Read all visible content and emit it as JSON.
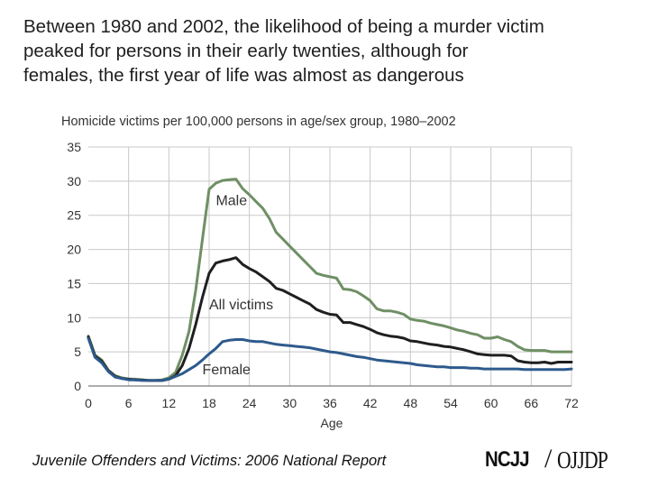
{
  "headline": "Between 1980 and 2002, the likelihood of being a murder victim\npeaked for persons in their early twenties, although for\nfemales, the first year of life was almost as dangerous",
  "footer": {
    "source": "Juvenile Offenders and Victims: 2006 National Report",
    "logo_left": "NCJJ",
    "logo_right": "OJJDP"
  },
  "colors": {
    "male": "#6f8f64",
    "all": "#1f1f1f",
    "female": "#2e5a8c",
    "grid": "#c8c8c8",
    "axis": "#7a7a7a"
  },
  "chart_data": {
    "type": "line",
    "title": "Homicide victims per 100,000 persons in age/sex group, 1980–2002",
    "xlabel": "Age",
    "ylabel": "",
    "xlim": [
      0,
      72
    ],
    "ylim": [
      0,
      35
    ],
    "xticks": [
      "0",
      "6",
      "12",
      "18",
      "24",
      "30",
      "36",
      "42",
      "48",
      "54",
      "60",
      "66",
      "72"
    ],
    "yticks": [
      "0",
      "5",
      "10",
      "15",
      "20",
      "25",
      "30",
      "35"
    ],
    "grid": true,
    "legend": "inline labels",
    "series": [
      {
        "name": "Male",
        "color_key": "male",
        "label_pos": [
          19,
          26.5
        ],
        "x": [
          0,
          1,
          2,
          3,
          4,
          5,
          6,
          7,
          8,
          9,
          10,
          11,
          12,
          13,
          14,
          15,
          16,
          17,
          18,
          19,
          20,
          21,
          22,
          23,
          24,
          25,
          26,
          27,
          28,
          29,
          30,
          31,
          32,
          33,
          34,
          35,
          36,
          37,
          38,
          39,
          40,
          41,
          42,
          43,
          44,
          45,
          46,
          47,
          48,
          49,
          50,
          51,
          52,
          53,
          54,
          55,
          56,
          57,
          58,
          59,
          60,
          61,
          62,
          63,
          64,
          65,
          66,
          67,
          68,
          69,
          70,
          71,
          72
        ],
        "y": [
          7.3,
          4.5,
          3.8,
          2.3,
          1.5,
          1.2,
          1.0,
          1.0,
          0.9,
          0.8,
          0.8,
          0.9,
          1.2,
          2.0,
          4.5,
          8.0,
          14.0,
          21.5,
          28.8,
          29.7,
          30.1,
          30.2,
          30.3,
          28.9,
          28.0,
          27.0,
          26.0,
          24.5,
          22.5,
          21.5,
          20.5,
          19.5,
          18.5,
          17.5,
          16.5,
          16.2,
          16.0,
          15.8,
          14.2,
          14.1,
          13.8,
          13.2,
          12.5,
          11.3,
          11.0,
          11.0,
          10.8,
          10.5,
          9.8,
          9.6,
          9.5,
          9.2,
          9.0,
          8.8,
          8.5,
          8.2,
          8.0,
          7.7,
          7.5,
          7.0,
          7.0,
          7.2,
          6.8,
          6.5,
          5.8,
          5.3,
          5.2,
          5.2,
          5.2,
          5.0,
          5.0,
          5.0,
          5.0
        ]
      },
      {
        "name": "All victims",
        "color_key": "all",
        "label_pos": [
          18,
          11.2
        ],
        "x": [
          0,
          1,
          2,
          3,
          4,
          5,
          6,
          7,
          8,
          9,
          10,
          11,
          12,
          13,
          14,
          15,
          16,
          17,
          18,
          19,
          20,
          21,
          22,
          23,
          24,
          25,
          26,
          27,
          28,
          29,
          30,
          31,
          32,
          33,
          34,
          35,
          36,
          37,
          38,
          39,
          40,
          41,
          42,
          43,
          44,
          45,
          46,
          47,
          48,
          49,
          50,
          51,
          52,
          53,
          54,
          55,
          56,
          57,
          58,
          59,
          60,
          61,
          62,
          63,
          64,
          65,
          66,
          67,
          68,
          69,
          70,
          71,
          72
        ],
        "y": [
          7.2,
          4.4,
          3.6,
          2.2,
          1.4,
          1.1,
          1.0,
          0.9,
          0.9,
          0.8,
          0.8,
          0.8,
          1.0,
          1.5,
          3.0,
          5.5,
          9.0,
          13.0,
          16.5,
          18.0,
          18.3,
          18.5,
          18.8,
          17.8,
          17.2,
          16.7,
          16.0,
          15.3,
          14.3,
          14.0,
          13.5,
          13.0,
          12.5,
          12.0,
          11.2,
          10.8,
          10.5,
          10.4,
          9.3,
          9.3,
          9.0,
          8.7,
          8.3,
          7.8,
          7.5,
          7.3,
          7.2,
          7.0,
          6.6,
          6.5,
          6.3,
          6.1,
          6.0,
          5.8,
          5.7,
          5.5,
          5.3,
          5.0,
          4.7,
          4.6,
          4.5,
          4.5,
          4.5,
          4.4,
          3.7,
          3.5,
          3.4,
          3.4,
          3.5,
          3.3,
          3.5,
          3.5,
          3.5
        ]
      },
      {
        "name": "Female",
        "color_key": "female",
        "label_pos": [
          17,
          1.7
        ],
        "x": [
          0,
          1,
          2,
          3,
          4,
          5,
          6,
          7,
          8,
          9,
          10,
          11,
          12,
          13,
          14,
          15,
          16,
          17,
          18,
          19,
          20,
          21,
          22,
          23,
          24,
          25,
          26,
          27,
          28,
          29,
          30,
          31,
          32,
          33,
          34,
          35,
          36,
          37,
          38,
          39,
          40,
          41,
          42,
          43,
          44,
          45,
          46,
          47,
          48,
          49,
          50,
          51,
          52,
          53,
          54,
          55,
          56,
          57,
          58,
          59,
          60,
          61,
          62,
          63,
          64,
          65,
          66,
          67,
          68,
          69,
          70,
          71,
          72
        ],
        "y": [
          7.0,
          4.2,
          3.4,
          2.1,
          1.3,
          1.1,
          0.9,
          0.9,
          0.8,
          0.8,
          0.8,
          0.8,
          1.0,
          1.4,
          1.8,
          2.4,
          3.0,
          3.8,
          4.7,
          5.5,
          6.5,
          6.7,
          6.8,
          6.8,
          6.6,
          6.5,
          6.5,
          6.3,
          6.1,
          6.0,
          5.9,
          5.8,
          5.7,
          5.6,
          5.4,
          5.2,
          5.0,
          4.9,
          4.7,
          4.5,
          4.3,
          4.2,
          4.0,
          3.8,
          3.7,
          3.6,
          3.5,
          3.4,
          3.3,
          3.1,
          3.0,
          2.9,
          2.8,
          2.8,
          2.7,
          2.7,
          2.7,
          2.6,
          2.6,
          2.5,
          2.5,
          2.5,
          2.5,
          2.5,
          2.5,
          2.4,
          2.4,
          2.4,
          2.4,
          2.4,
          2.4,
          2.4,
          2.5
        ]
      }
    ]
  }
}
